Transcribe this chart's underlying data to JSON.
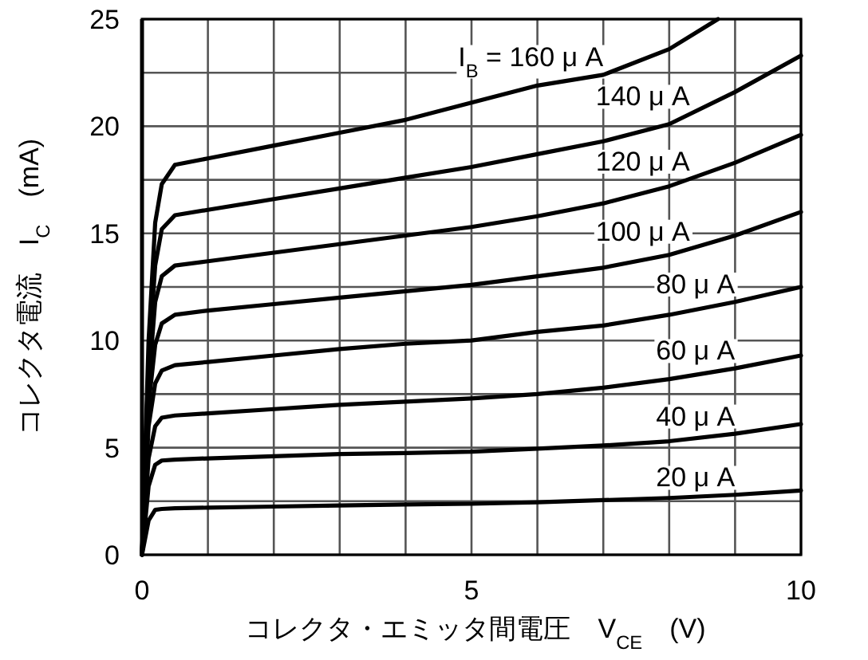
{
  "chart_data": {
    "type": "line",
    "xlabel": "コレクタ・エミッタ間電圧　V$_{CE}$　(V)",
    "ylabel": "コレクタ電流　I$_{C}$　(mA)",
    "xlim": [
      0,
      10
    ],
    "ylim": [
      0,
      25
    ],
    "xticks": [
      0,
      {
        "value": 1,
        "label": null
      },
      {
        "value": 2,
        "label": null
      },
      {
        "value": 3,
        "label": null
      },
      {
        "value": 4,
        "label": null
      },
      5,
      {
        "value": 6,
        "label": null
      },
      {
        "value": 7,
        "label": null
      },
      {
        "value": 8,
        "label": null
      },
      {
        "value": 9,
        "label": null
      },
      10
    ],
    "yticks": [
      0,
      {
        "value": 2.5,
        "label": null
      },
      5,
      {
        "value": 7.5,
        "label": null
      },
      10,
      {
        "value": 12.5,
        "label": null
      },
      15,
      {
        "value": 17.5,
        "label": null
      },
      20,
      {
        "value": 22.5,
        "label": null
      },
      25
    ],
    "grid": true,
    "line_style": "solid",
    "series": [
      {
        "name": "I$_{B}$ = 160 μ A",
        "color": "#000000",
        "x": [
          0,
          0.1,
          0.2,
          0.3,
          0.5,
          1,
          2,
          3,
          4,
          5,
          6,
          7,
          8,
          8.74
        ],
        "values": [
          0,
          10,
          15.5,
          17.3,
          18.2,
          18.5,
          19.1,
          19.7,
          20.3,
          21.1,
          21.9,
          22.4,
          23.6,
          25
        ]
      },
      {
        "name": "140 μ A",
        "color": "#000000",
        "x": [
          0,
          0.1,
          0.2,
          0.3,
          0.5,
          1,
          2,
          3,
          4,
          5,
          6,
          7,
          8,
          9,
          10
        ],
        "values": [
          0,
          9,
          13.5,
          15.2,
          15.85,
          16.1,
          16.6,
          17.1,
          17.6,
          18.1,
          18.7,
          19.3,
          20.1,
          21.6,
          23.3
        ]
      },
      {
        "name": "120 μ A",
        "color": "#000000",
        "x": [
          0,
          0.1,
          0.2,
          0.3,
          0.5,
          1,
          2,
          3,
          4,
          5,
          6,
          7,
          8,
          9,
          10
        ],
        "values": [
          0,
          8,
          11.8,
          13.0,
          13.5,
          13.7,
          14.1,
          14.5,
          14.9,
          15.3,
          15.8,
          16.4,
          17.2,
          18.3,
          19.6
        ]
      },
      {
        "name": "100 μ A",
        "color": "#000000",
        "x": [
          0,
          0.1,
          0.2,
          0.3,
          0.5,
          1,
          2,
          3,
          4,
          5,
          6,
          7,
          8,
          9,
          10
        ],
        "values": [
          0,
          7,
          9.8,
          10.8,
          11.2,
          11.4,
          11.7,
          12.0,
          12.3,
          12.6,
          13.0,
          13.4,
          14.0,
          14.9,
          16.0
        ]
      },
      {
        "name": "80 μ A",
        "color": "#000000",
        "x": [
          0,
          0.1,
          0.2,
          0.3,
          0.5,
          1,
          2,
          3,
          4,
          5,
          6,
          7,
          8,
          9,
          10
        ],
        "values": [
          0,
          6,
          8.0,
          8.6,
          8.85,
          9.0,
          9.3,
          9.6,
          9.85,
          10.0,
          10.4,
          10.7,
          11.2,
          11.8,
          12.5
        ]
      },
      {
        "name": "60 μ A",
        "color": "#000000",
        "x": [
          0,
          0.1,
          0.2,
          0.3,
          0.5,
          1,
          2,
          3,
          4,
          5,
          6,
          7,
          8,
          9,
          10
        ],
        "values": [
          0,
          4.5,
          6.0,
          6.4,
          6.5,
          6.6,
          6.8,
          7.0,
          7.15,
          7.3,
          7.5,
          7.8,
          8.2,
          8.7,
          9.3
        ]
      },
      {
        "name": "40 μ A",
        "color": "#000000",
        "x": [
          0,
          0.1,
          0.2,
          0.3,
          0.5,
          1,
          2,
          3,
          4,
          5,
          6,
          7,
          8,
          9,
          10
        ],
        "values": [
          0,
          3.2,
          4.2,
          4.4,
          4.44,
          4.5,
          4.6,
          4.7,
          4.75,
          4.81,
          4.95,
          5.1,
          5.3,
          5.65,
          6.1
        ]
      },
      {
        "name": "20 μ A",
        "color": "#000000",
        "x": [
          0,
          0.1,
          0.2,
          0.3,
          0.5,
          1,
          2,
          3,
          4,
          5,
          6,
          7,
          8,
          9,
          10
        ],
        "values": [
          0,
          1.6,
          2.1,
          2.14,
          2.17,
          2.2,
          2.25,
          2.3,
          2.35,
          2.38,
          2.45,
          2.55,
          2.65,
          2.8,
          3.0
        ]
      }
    ]
  }
}
